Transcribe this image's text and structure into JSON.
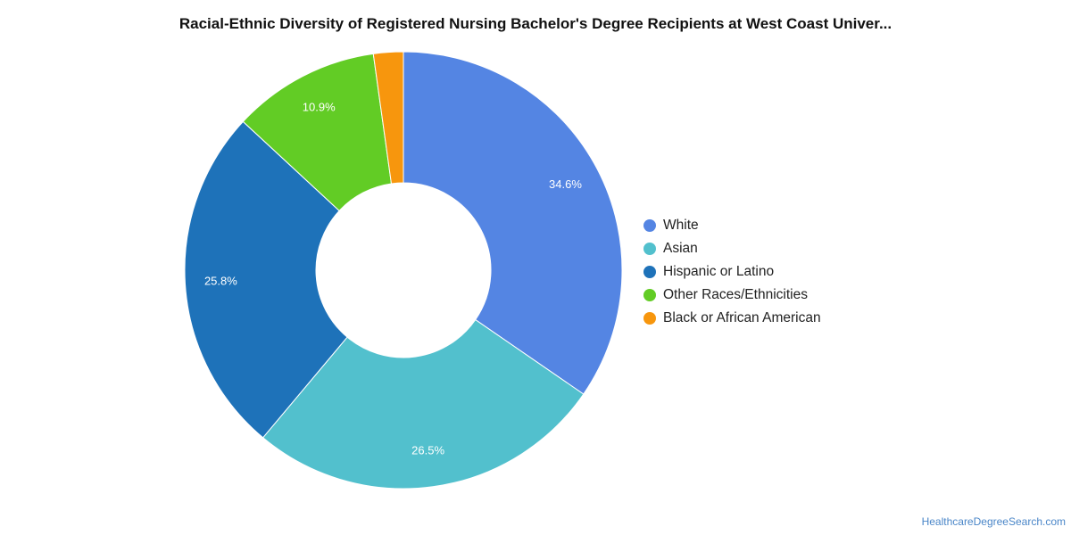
{
  "title": "Racial-Ethnic Diversity of Registered Nursing Bachelor's Degree Recipients at West Coast Univer...",
  "credit": "HealthcareDegreeSearch.com",
  "chart_data": {
    "type": "pie",
    "variant": "donut",
    "title": "Racial-Ethnic Diversity of Registered Nursing Bachelor's Degree Recipients at West Coast Univer...",
    "legend_position": "right",
    "slices": [
      {
        "label": "White",
        "value": 34.6,
        "value_label": "34.6%",
        "color": "#5485e3"
      },
      {
        "label": "Asian",
        "value": 26.5,
        "value_label": "26.5%",
        "color": "#52c0cd"
      },
      {
        "label": "Hispanic or Latino",
        "value": 25.8,
        "value_label": "25.8%",
        "color": "#1e72b9"
      },
      {
        "label": "Other Races/Ethnicities",
        "value": 10.9,
        "value_label": "10.9%",
        "color": "#62cc25"
      },
      {
        "label": "Black or African American",
        "value": 2.2,
        "value_label": "",
        "color": "#f7960d"
      }
    ]
  }
}
